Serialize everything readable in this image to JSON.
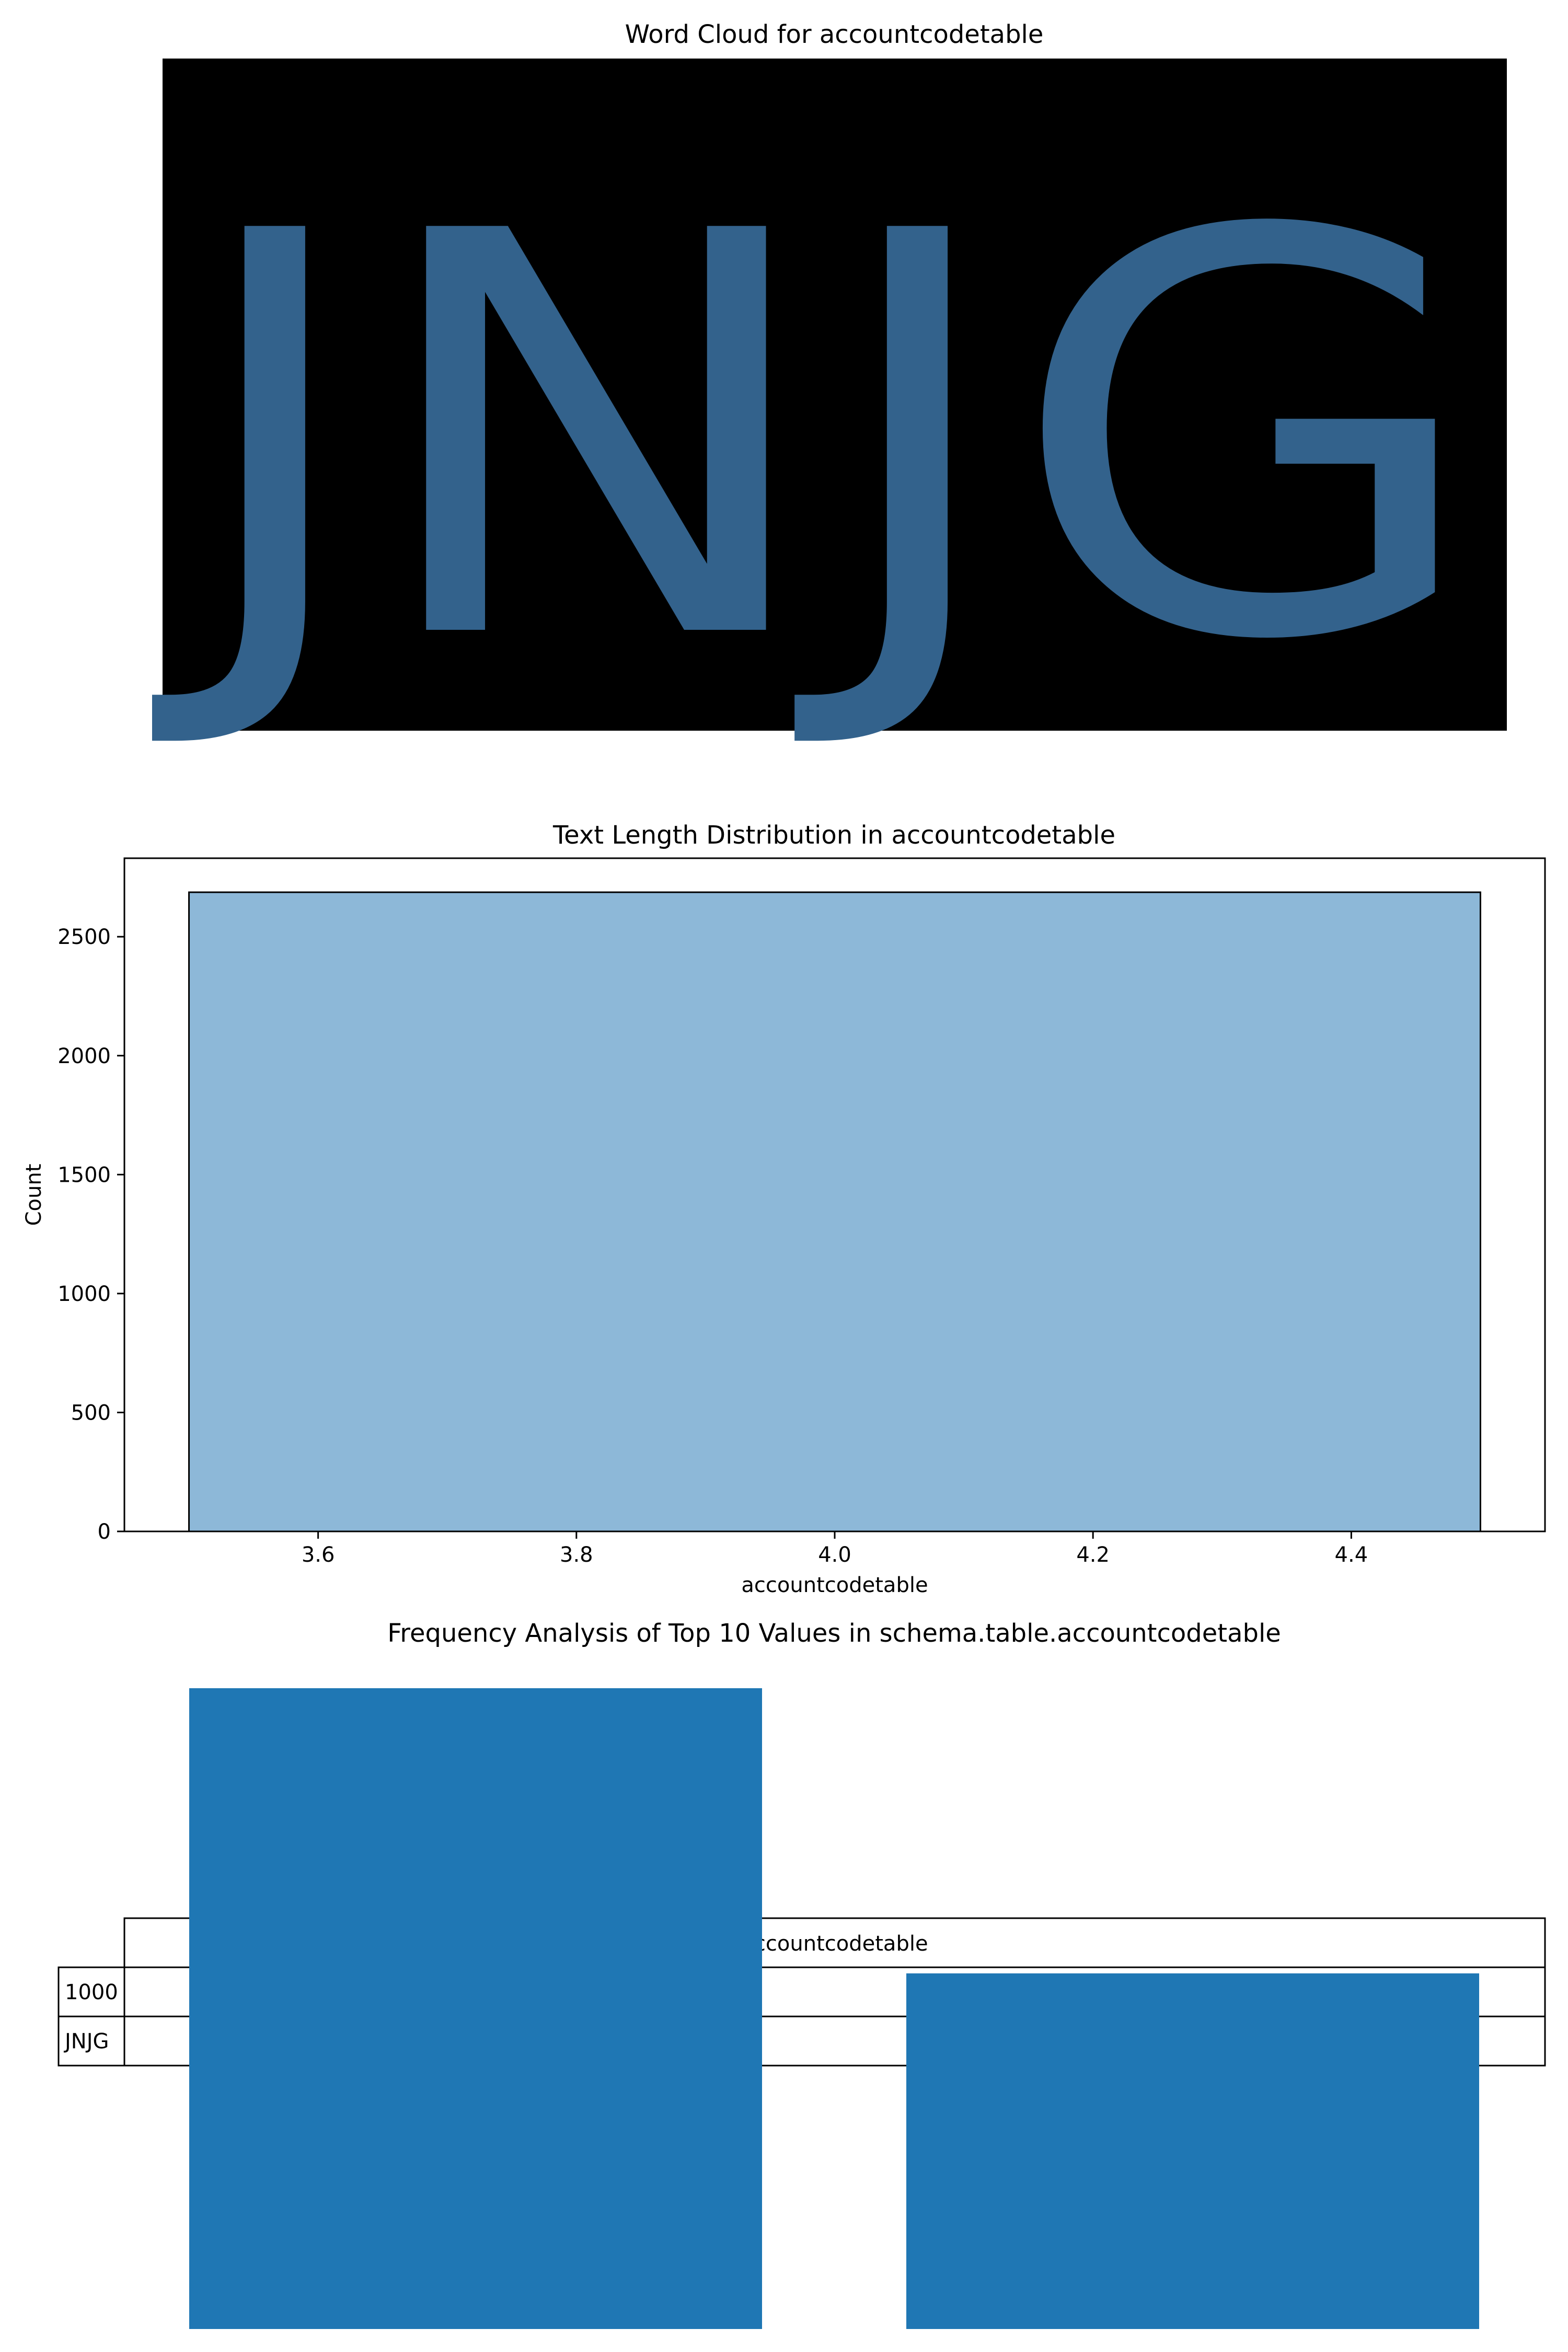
{
  "figure": {
    "wordcloud_title": "Word Cloud for accountcodetable",
    "wordcloud_word": "JNJG",
    "hist_title": "Text Length Distribution in accountcodetable",
    "freq_title": "Frequency Analysis of Top 10 Values in schema.table.accountcodetable"
  },
  "chart_data": [
    {
      "type": "wordcloud",
      "title": "Word Cloud for accountcodetable",
      "words": [
        {
          "text": "JNJG",
          "color": "#33628C"
        }
      ],
      "background": "#000000"
    },
    {
      "type": "bar",
      "title": "Text Length Distribution in accountcodetable",
      "xlabel": "accountcodetable",
      "ylabel": "Count",
      "bins": [
        {
          "x0": 3.5,
          "x1": 4.5,
          "count": 2687
        }
      ],
      "xlim": [
        3.45,
        4.55
      ],
      "ylim": [
        0,
        2830
      ],
      "xticks": [
        3.6,
        3.8,
        4.0,
        4.2,
        4.4
      ],
      "xtick_labels": [
        "3.6",
        "3.8",
        "4.0",
        "4.2",
        "4.4"
      ],
      "yticks": [
        0,
        500,
        1000,
        1500,
        2000,
        2500
      ],
      "ytick_labels": [
        "0",
        "500",
        "1000",
        "1500",
        "2000",
        "2500"
      ],
      "grid": false,
      "fill_color": "#8DB8D8",
      "edge_color": "#000000"
    },
    {
      "type": "table",
      "title": "Frequency Analysis of Top 10 Values in schema.table.accountcodetable",
      "column_header": "accountcodetable",
      "row_labels": [
        "1000",
        "JNJG"
      ],
      "bars": [
        {
          "value": 1.0
        },
        {
          "value": 0.555
        }
      ],
      "bar_color": "#1F77B4"
    }
  ]
}
